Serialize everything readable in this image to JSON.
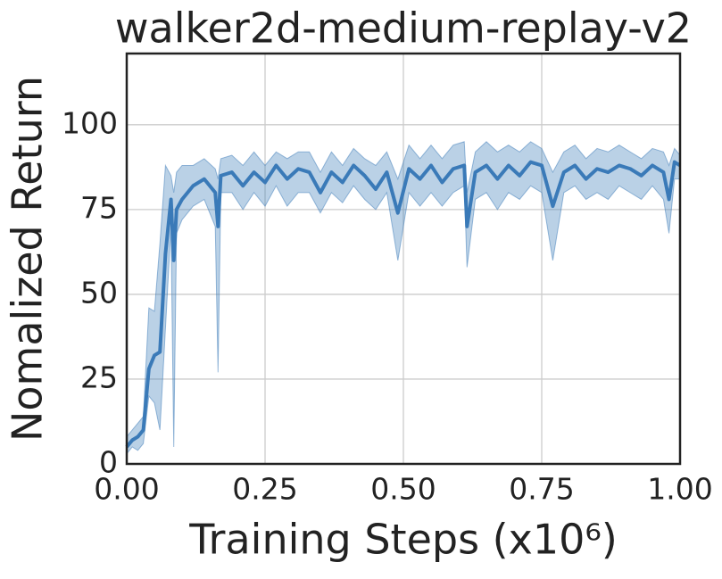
{
  "chart_data": {
    "type": "line",
    "title": "walker2d-medium-replay-v2",
    "xlabel": "Training Steps (x10⁶)",
    "ylabel": "Nomalized Return",
    "x": [
      0.0,
      0.01,
      0.02,
      0.03,
      0.04,
      0.05,
      0.06,
      0.07,
      0.08,
      0.085,
      0.09,
      0.1,
      0.12,
      0.14,
      0.16,
      0.165,
      0.17,
      0.19,
      0.21,
      0.23,
      0.25,
      0.27,
      0.29,
      0.31,
      0.33,
      0.35,
      0.37,
      0.39,
      0.41,
      0.43,
      0.45,
      0.47,
      0.49,
      0.51,
      0.53,
      0.55,
      0.57,
      0.59,
      0.61,
      0.615,
      0.63,
      0.65,
      0.67,
      0.69,
      0.71,
      0.73,
      0.75,
      0.77,
      0.79,
      0.81,
      0.83,
      0.85,
      0.87,
      0.89,
      0.91,
      0.93,
      0.95,
      0.97,
      0.98,
      0.99,
      1.0
    ],
    "series": [
      {
        "color": "#3a7ab8",
        "values": [
          5,
          7,
          8,
          10,
          28,
          32,
          33,
          62,
          78,
          60,
          75,
          78,
          82,
          84,
          80,
          70,
          85,
          86,
          82,
          86,
          83,
          88,
          84,
          87,
          86,
          80,
          86,
          83,
          88,
          85,
          81,
          86,
          74,
          87,
          84,
          88,
          83,
          87,
          88,
          70,
          86,
          88,
          84,
          88,
          85,
          89,
          88,
          76,
          86,
          88,
          84,
          87,
          86,
          88,
          87,
          85,
          88,
          86,
          78,
          89,
          88
        ],
        "lower": [
          3,
          5,
          4,
          6,
          20,
          18,
          10,
          40,
          70,
          5,
          68,
          72,
          76,
          78,
          70,
          27,
          80,
          80,
          75,
          80,
          76,
          82,
          76,
          80,
          80,
          74,
          80,
          77,
          82,
          78,
          75,
          80,
          60,
          80,
          76,
          80,
          76,
          80,
          82,
          58,
          78,
          80,
          75,
          80,
          78,
          82,
          80,
          60,
          80,
          82,
          78,
          80,
          78,
          82,
          80,
          78,
          82,
          78,
          68,
          84,
          84
        ],
        "upper": [
          8,
          10,
          12,
          14,
          46,
          45,
          65,
          88,
          85,
          80,
          86,
          88,
          88,
          90,
          87,
          84,
          90,
          91,
          88,
          92,
          88,
          92,
          90,
          92,
          92,
          86,
          92,
          88,
          93,
          90,
          88,
          92,
          84,
          94,
          90,
          94,
          90,
          94,
          95,
          80,
          92,
          95,
          92,
          94,
          92,
          95,
          93,
          86,
          92,
          94,
          90,
          93,
          92,
          94,
          92,
          90,
          93,
          92,
          88,
          93,
          91
        ]
      }
    ],
    "xlim": [
      0,
      1
    ],
    "xticks": [
      {
        "value": 0,
        "label": "0.00"
      },
      {
        "value": 0.25,
        "label": "0.25"
      },
      {
        "value": 0.5,
        "label": "0.50"
      },
      {
        "value": 0.75,
        "label": "0.75"
      },
      {
        "value": 1,
        "label": "1.00"
      }
    ],
    "ylim": [
      0,
      121
    ],
    "yticks": [
      0,
      25,
      50,
      75,
      100
    ],
    "grid": true
  }
}
